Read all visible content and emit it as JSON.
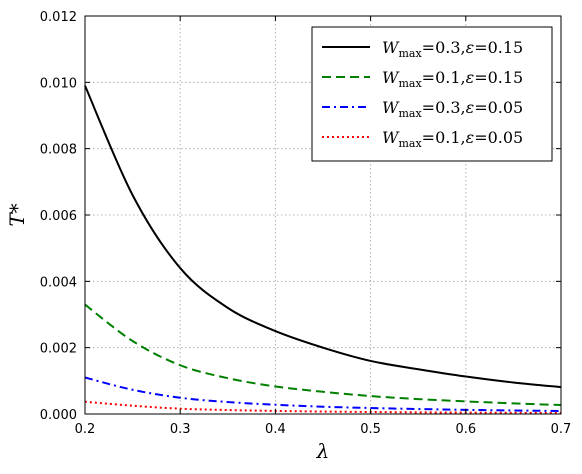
{
  "chart_data": {
    "type": "line",
    "xlabel": "λ",
    "ylabel": "T*",
    "xlim": [
      0.2,
      0.7
    ],
    "ylim": [
      0.0,
      0.012
    ],
    "xticks": [
      "0.2",
      "0.3",
      "0.4",
      "0.5",
      "0.6",
      "0.7"
    ],
    "yticks": [
      "0.000",
      "0.002",
      "0.004",
      "0.006",
      "0.008",
      "0.010",
      "0.012"
    ],
    "grid": true,
    "legend_position": "top-right",
    "x": [
      0.2,
      0.25,
      0.3,
      0.35,
      0.4,
      0.45,
      0.5,
      0.55,
      0.6,
      0.65,
      0.7
    ],
    "series": [
      {
        "name": "Wmax=0.3,ε=0.15",
        "w_value": "=0.3,",
        "eps_value": "=0.15",
        "color": "#000000",
        "dash": "solid",
        "values": [
          0.0099,
          0.0066,
          0.0044,
          0.0032,
          0.0025,
          0.002,
          0.0016,
          0.00135,
          0.00113,
          0.00095,
          0.00081
        ]
      },
      {
        "name": "Wmax=0.1,ε=0.15",
        "w_value": "=0.1,",
        "eps_value": "=0.15",
        "color": "#008000",
        "dash": "dashed",
        "values": [
          0.0033,
          0.0022,
          0.00147,
          0.00108,
          0.00083,
          0.00067,
          0.00054,
          0.00045,
          0.00038,
          0.00032,
          0.00027
        ]
      },
      {
        "name": "Wmax=0.3,ε=0.05",
        "w_value": "=0.3,",
        "eps_value": "=0.05",
        "color": "#0000ff",
        "dash": "dashdot",
        "values": [
          0.0011,
          0.00073,
          0.00049,
          0.00036,
          0.00028,
          0.00022,
          0.00018,
          0.00015,
          0.000125,
          0.000106,
          9e-05
        ]
      },
      {
        "name": "Wmax=0.1,ε=0.05",
        "w_value": "=0.1,",
        "eps_value": "=0.05",
        "color": "#ff0000",
        "dash": "dotted",
        "values": [
          0.00037,
          0.00025,
          0.00016,
          0.00012,
          9.2e-05,
          7.4e-05,
          6e-05,
          5e-05,
          4.2e-05,
          3.5e-05,
          3e-05
        ]
      }
    ]
  }
}
